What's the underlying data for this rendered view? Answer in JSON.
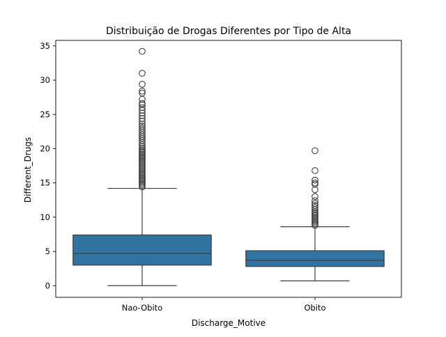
{
  "chart_data": {
    "type": "box",
    "title": "Distribuição de Drogas Diferentes por Tipo de Alta",
    "xlabel": "Discharge_Motive",
    "ylabel": "Different_Drugs",
    "categories": [
      "Nao-Obito",
      "Obito"
    ],
    "ylim": [
      -1.7,
      35.8
    ],
    "yticks": [
      0,
      5,
      10,
      15,
      20,
      25,
      30,
      35
    ],
    "ytick_labels": [
      "0",
      "5",
      "10",
      "15",
      "20",
      "25",
      "30",
      "35"
    ],
    "grid": false,
    "box_color": "#3274a1",
    "boxes": [
      {
        "category": "Nao-Obito",
        "whisker_low": 0,
        "q1": 3,
        "median": 4.7,
        "q3": 7.4,
        "whisker_high": 14.2,
        "outliers": [
          14.4,
          14.6,
          14.8,
          15,
          15.2,
          15.4,
          15.6,
          15.8,
          16,
          16.2,
          16.4,
          16.6,
          16.8,
          17,
          17.2,
          17.4,
          17.6,
          17.8,
          18,
          18.2,
          18.4,
          18.6,
          18.8,
          19,
          19.2,
          19.4,
          19.6,
          19.8,
          20,
          20.3,
          20.6,
          20.9,
          21.2,
          21.5,
          21.8,
          22.1,
          22.4,
          22.7,
          23,
          23.3,
          23.6,
          24,
          24.4,
          24.8,
          25.2,
          25.6,
          26,
          26.4,
          26.6,
          27.2,
          28.1,
          28.4,
          29.4,
          31,
          34.2
        ]
      },
      {
        "category": "Obito",
        "whisker_low": 0.7,
        "q1": 2.8,
        "median": 3.7,
        "q3": 5.1,
        "whisker_high": 8.6,
        "outliers": [
          8.8,
          9,
          9.2,
          9.4,
          9.6,
          9.8,
          10,
          10.2,
          10.4,
          10.6,
          10.8,
          11.1,
          11.4,
          11.7,
          12,
          12.4,
          13,
          14,
          14.8,
          15,
          15.4,
          16.8,
          19.7
        ]
      }
    ]
  }
}
